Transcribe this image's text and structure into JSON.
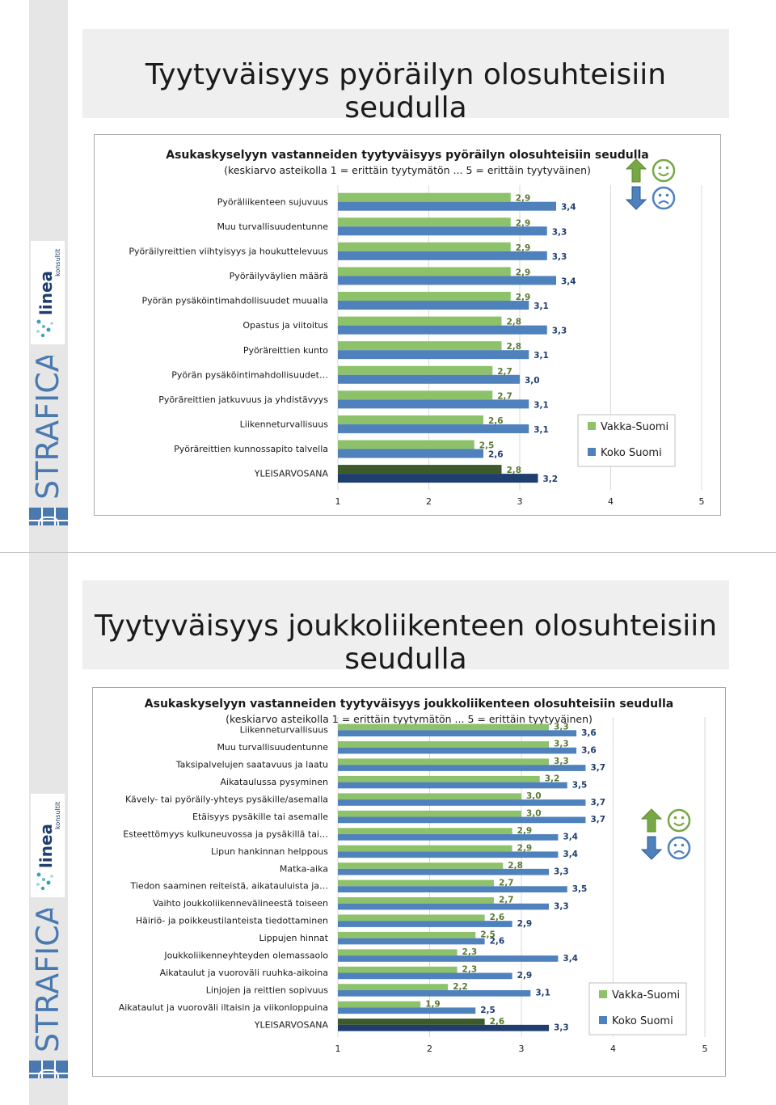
{
  "slides": [
    {
      "title": "Tyytyväisyys pyöräilyn olosuhteisiin seudulla",
      "brand": "STRAFICA",
      "logo_word": "linea",
      "logo_sub": "konsultit",
      "chart_data": {
        "type": "bar",
        "orientation": "horizontal",
        "title": "Asukaskyselyyn vastanneiden tyytyväisyys pyöräilyn olosuhteisiin seudulla",
        "subtitle": "(keskiarvo asteikolla 1 = erittäin tyytymätön ... 5 = erittäin tyytyväinen)",
        "categories": [
          "Pyöräliikenteen sujuvuus",
          "Muu turvallisuudentunne",
          "Pyöräilyreittien viihtyisyys ja houkuttelevuus",
          "Pyöräilyväylien määrä",
          "Pyörän pysäköintimahdollisuudet muualla",
          "Opastus ja viitoitus",
          "Pyöräreittien kunto",
          "Pyörän pysäköintimahdollisuudet…",
          "Pyöräreittien jatkuvuus ja yhdistävyys",
          "Liikenneturvallisuus",
          "Pyöräreittien kunnossapito talvella",
          "YLEISARVOSANA"
        ],
        "series": [
          {
            "name": "Vakka-Suomi",
            "color": "#8dc26b",
            "values": [
              2.9,
              2.9,
              2.9,
              2.9,
              2.9,
              2.8,
              2.8,
              2.7,
              2.7,
              2.6,
              2.5,
              2.8
            ],
            "labels": [
              "2,9",
              "2,9",
              "2,9",
              "2,9",
              "2,9",
              "2,8",
              "2,8",
              "2,7",
              "2,7",
              "2,6",
              "2,5",
              "2,8"
            ]
          },
          {
            "name": "Koko Suomi",
            "color": "#4f81bd",
            "values": [
              3.4,
              3.3,
              3.3,
              3.4,
              3.1,
              3.3,
              3.1,
              3.0,
              3.1,
              3.1,
              2.6,
              3.2
            ],
            "labels": [
              "3,4",
              "3,3",
              "3,3",
              "3,4",
              "3,1",
              "3,3",
              "3,1",
              "3,0",
              "3,1",
              "3,1",
              "2,6",
              "3,2"
            ]
          }
        ],
        "summary_colors": [
          "#3c5a2a",
          "#1f3d6e"
        ],
        "summary_label_colors": [
          "#5a7a32",
          "#1f3d6e"
        ],
        "xlim": [
          1,
          5
        ],
        "xticks": [
          "1",
          "2",
          "3",
          "4",
          "5"
        ],
        "legend_position": "right",
        "icons": [
          "arrow-up-icon",
          "smiley-happy-icon",
          "arrow-down-icon",
          "smiley-sad-icon"
        ],
        "icon_colors": {
          "up": "#77a845",
          "down": "#4f81bd"
        }
      }
    },
    {
      "title": "Tyytyväisyys joukkoliikenteen olosuhteisiin seudulla",
      "brand": "STRAFICA",
      "logo_word": "linea",
      "logo_sub": "konsultit",
      "chart_data": {
        "type": "bar",
        "orientation": "horizontal",
        "title": "Asukaskyselyyn vastanneiden tyytyväisyys joukkoliikenteen olosuhteisiin seudulla",
        "subtitle": "(keskiarvo asteikolla 1 = erittäin tyytymätön ... 5 = erittäin tyytyväinen)",
        "categories": [
          "Liikenneturvallisuus",
          "Muu turvallisuudentunne",
          "Taksipalvelujen saatavuus ja laatu",
          "Aikataulussa pysyminen",
          "Kävely- tai pyöräily-yhteys pysäkille/asemalla",
          "Etäisyys pysäkille tai asemalle",
          "Esteettömyys kulkuneuvossa ja pysäkillä tai…",
          "Lipun hankinnan helppous",
          "Matka-aika",
          "Tiedon saaminen reiteistä, aikatauluista ja…",
          "Vaihto joukkoliikennevälineestä toiseen",
          "Häiriö- ja poikkeustilanteista tiedottaminen",
          "Lippujen hinnat",
          "Joukkoliikenneyhteyden olemassaolo",
          "Aikataulut ja vuoroväli ruuhka-aikoina",
          "Linjojen ja reittien sopivuus",
          "Aikataulut ja vuoroväli iltaisin ja viikonloppuina",
          "YLEISARVOSANA"
        ],
        "series": [
          {
            "name": "Vakka-Suomi",
            "color": "#8dc26b",
            "values": [
              3.3,
              3.3,
              3.3,
              3.2,
              3.0,
              3.0,
              2.9,
              2.9,
              2.8,
              2.7,
              2.7,
              2.6,
              2.5,
              2.3,
              2.3,
              2.2,
              1.9,
              2.6
            ],
            "labels": [
              "3,3",
              "3,3",
              "3,3",
              "3,2",
              "3,0",
              "3,0",
              "2,9",
              "2,9",
              "2,8",
              "2,7",
              "2,7",
              "2,6",
              "2,5",
              "2,3",
              "2,3",
              "2,2",
              "1,9",
              "2,6"
            ]
          },
          {
            "name": "Koko Suomi",
            "color": "#4f81bd",
            "values": [
              3.6,
              3.6,
              3.7,
              3.5,
              3.7,
              3.7,
              3.4,
              3.4,
              3.3,
              3.5,
              3.3,
              2.9,
              2.6,
              3.4,
              2.9,
              3.1,
              2.5,
              3.3
            ],
            "labels": [
              "3,6",
              "3,6",
              "3,7",
              "3,5",
              "3,7",
              "3,7",
              "3,4",
              "3,4",
              "3,3",
              "3,5",
              "3,3",
              "2,9",
              "2,6",
              "3,4",
              "2,9",
              "3,1",
              "2,5",
              "3,3"
            ]
          }
        ],
        "summary_colors": [
          "#3c5a2a",
          "#1f3d6e"
        ],
        "summary_label_colors": [
          "#5a7a32",
          "#1f3d6e"
        ],
        "xlim": [
          1,
          5
        ],
        "xticks": [
          "1",
          "2",
          "3",
          "4",
          "5"
        ],
        "legend_position": "right",
        "icons": [
          "arrow-up-icon",
          "smiley-happy-icon",
          "arrow-down-icon",
          "smiley-sad-icon"
        ],
        "icon_colors": {
          "up": "#77a845",
          "down": "#4f81bd"
        }
      }
    }
  ]
}
